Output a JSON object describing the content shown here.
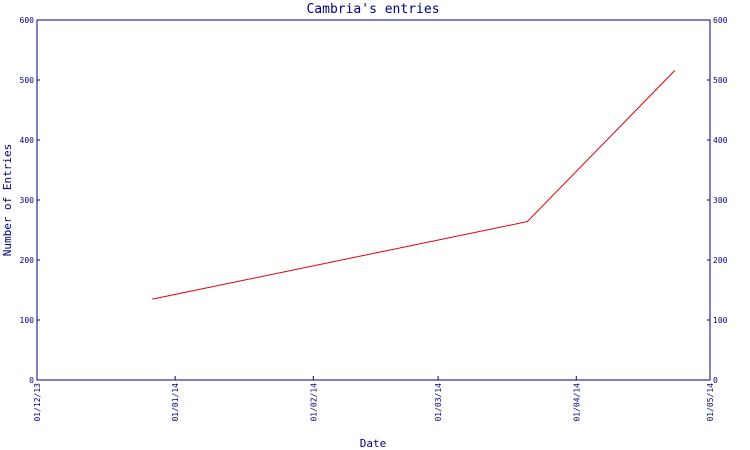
{
  "chart_data": {
    "type": "line",
    "title": "Cambria's entries",
    "xlabel": "Date",
    "ylabel": "Number of Entries",
    "ylim": [
      0,
      600
    ],
    "yticks": [
      0,
      100,
      200,
      300,
      400,
      500,
      600
    ],
    "xlim": [
      "2013-12-01",
      "2014-05-01"
    ],
    "xticks": [
      {
        "date": "2013-12-01",
        "label": "01/12/13"
      },
      {
        "date": "2014-01-01",
        "label": "01/01/14"
      },
      {
        "date": "2014-02-01",
        "label": "01/02/14"
      },
      {
        "date": "2014-03-01",
        "label": "01/03/14"
      },
      {
        "date": "2014-04-01",
        "label": "01/04/14"
      },
      {
        "date": "2014-05-01",
        "label": "01/05/14"
      }
    ],
    "grid": false,
    "series": [
      {
        "color": "#e00000",
        "points": [
          {
            "x": "2013-12-27",
            "y": 135
          },
          {
            "x": "2014-03-21",
            "y": 264
          },
          {
            "x": "2014-04-23",
            "y": 515
          }
        ]
      }
    ],
    "axis_color": "#000080"
  }
}
